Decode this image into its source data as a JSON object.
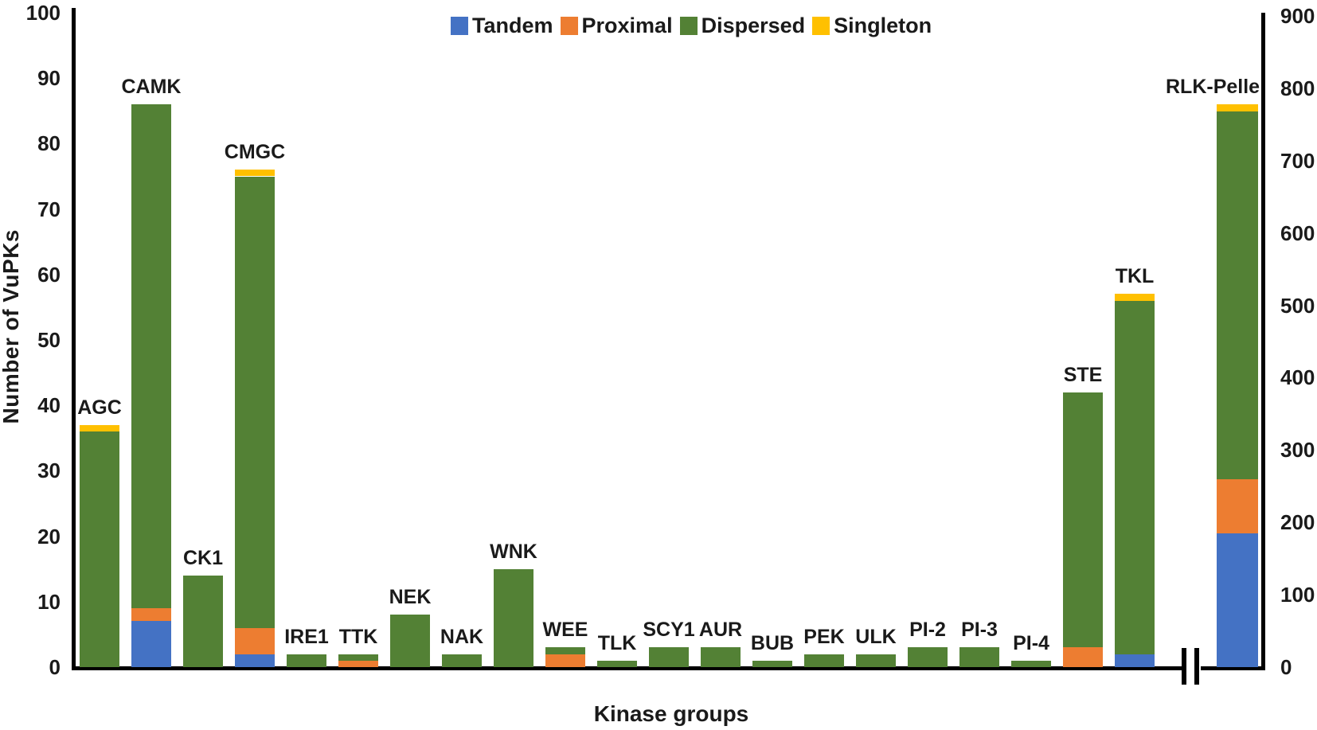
{
  "chart_data": {
    "type": "bar",
    "stacked": true,
    "title": "",
    "xlabel": "Kinase groups",
    "ylabel": "Number of VuPKs",
    "grid": false,
    "legend_position": "top-center",
    "legend": [
      {
        "name": "Tandem",
        "color": "#4472C4"
      },
      {
        "name": "Proximal",
        "color": "#ED7D31"
      },
      {
        "name": "Dispersed",
        "color": "#538135"
      },
      {
        "name": "Singleton",
        "color": "#FFC000"
      }
    ],
    "left_axis": {
      "min": 0,
      "max": 100,
      "ticks": [
        0,
        10,
        20,
        30,
        40,
        50,
        60,
        70,
        80,
        90,
        100
      ]
    },
    "right_axis": {
      "min": 0,
      "max": 900,
      "ticks": [
        0,
        100,
        200,
        300,
        400,
        500,
        600,
        700,
        800,
        900
      ]
    },
    "x_axis_break_before": "RLK-Pelle",
    "bars": [
      {
        "label": "AGC",
        "axis": "left",
        "segments": {
          "Tandem": 0,
          "Proximal": 0,
          "Dispersed": 36,
          "Singleton": 1
        },
        "total": 37
      },
      {
        "label": "CAMK",
        "axis": "left",
        "segments": {
          "Tandem": 7,
          "Proximal": 2,
          "Dispersed": 77,
          "Singleton": 0
        },
        "total": 86
      },
      {
        "label": "CK1",
        "axis": "left",
        "segments": {
          "Tandem": 0,
          "Proximal": 0,
          "Dispersed": 14,
          "Singleton": 0
        },
        "total": 14
      },
      {
        "label": "CMGC",
        "axis": "left",
        "segments": {
          "Tandem": 2,
          "Proximal": 4,
          "Dispersed": 69,
          "Singleton": 1
        },
        "total": 76
      },
      {
        "label": "IRE1",
        "axis": "left",
        "segments": {
          "Tandem": 0,
          "Proximal": 0,
          "Dispersed": 2,
          "Singleton": 0
        },
        "total": 2
      },
      {
        "label": "TTK",
        "axis": "left",
        "segments": {
          "Tandem": 0,
          "Proximal": 1,
          "Dispersed": 1,
          "Singleton": 0
        },
        "total": 2
      },
      {
        "label": "NEK",
        "axis": "left",
        "segments": {
          "Tandem": 0,
          "Proximal": 0,
          "Dispersed": 8,
          "Singleton": 0
        },
        "total": 8
      },
      {
        "label": "NAK",
        "axis": "left",
        "segments": {
          "Tandem": 0,
          "Proximal": 0,
          "Dispersed": 2,
          "Singleton": 0
        },
        "total": 2
      },
      {
        "label": "WNK",
        "axis": "left",
        "segments": {
          "Tandem": 0,
          "Proximal": 0,
          "Dispersed": 15,
          "Singleton": 0
        },
        "total": 15
      },
      {
        "label": "WEE",
        "axis": "left",
        "segments": {
          "Tandem": 0,
          "Proximal": 2,
          "Dispersed": 1,
          "Singleton": 0
        },
        "total": 3
      },
      {
        "label": "TLK",
        "axis": "left",
        "segments": {
          "Tandem": 0,
          "Proximal": 0,
          "Dispersed": 1,
          "Singleton": 0
        },
        "total": 1
      },
      {
        "label": "SCY1",
        "axis": "left",
        "segments": {
          "Tandem": 0,
          "Proximal": 0,
          "Dispersed": 3,
          "Singleton": 0
        },
        "total": 3
      },
      {
        "label": "AUR",
        "axis": "left",
        "segments": {
          "Tandem": 0,
          "Proximal": 0,
          "Dispersed": 3,
          "Singleton": 0
        },
        "total": 3
      },
      {
        "label": "BUB",
        "axis": "left",
        "segments": {
          "Tandem": 0,
          "Proximal": 0,
          "Dispersed": 1,
          "Singleton": 0
        },
        "total": 1
      },
      {
        "label": "PEK",
        "axis": "left",
        "segments": {
          "Tandem": 0,
          "Proximal": 0,
          "Dispersed": 2,
          "Singleton": 0
        },
        "total": 2
      },
      {
        "label": "ULK",
        "axis": "left",
        "segments": {
          "Tandem": 0,
          "Proximal": 0,
          "Dispersed": 2,
          "Singleton": 0
        },
        "total": 2
      },
      {
        "label": "PI-2",
        "axis": "left",
        "segments": {
          "Tandem": 0,
          "Proximal": 0,
          "Dispersed": 3,
          "Singleton": 0
        },
        "total": 3
      },
      {
        "label": "PI-3",
        "axis": "left",
        "segments": {
          "Tandem": 0,
          "Proximal": 0,
          "Dispersed": 3,
          "Singleton": 0
        },
        "total": 3
      },
      {
        "label": "PI-4",
        "axis": "left",
        "segments": {
          "Tandem": 0,
          "Proximal": 0,
          "Dispersed": 1,
          "Singleton": 0
        },
        "total": 1
      },
      {
        "label": "STE",
        "axis": "left",
        "segments": {
          "Tandem": 0,
          "Proximal": 3,
          "Dispersed": 39,
          "Singleton": 0
        },
        "total": 42
      },
      {
        "label": "TKL",
        "axis": "left",
        "segments": {
          "Tandem": 2,
          "Proximal": 0,
          "Dispersed": 54,
          "Singleton": 1
        },
        "total": 57
      },
      {
        "label": "RLK-Pelle",
        "axis": "right",
        "segments": {
          "Tandem": 185,
          "Proximal": 75,
          "Dispersed": 508,
          "Singleton": 10
        },
        "total": 778
      }
    ]
  }
}
